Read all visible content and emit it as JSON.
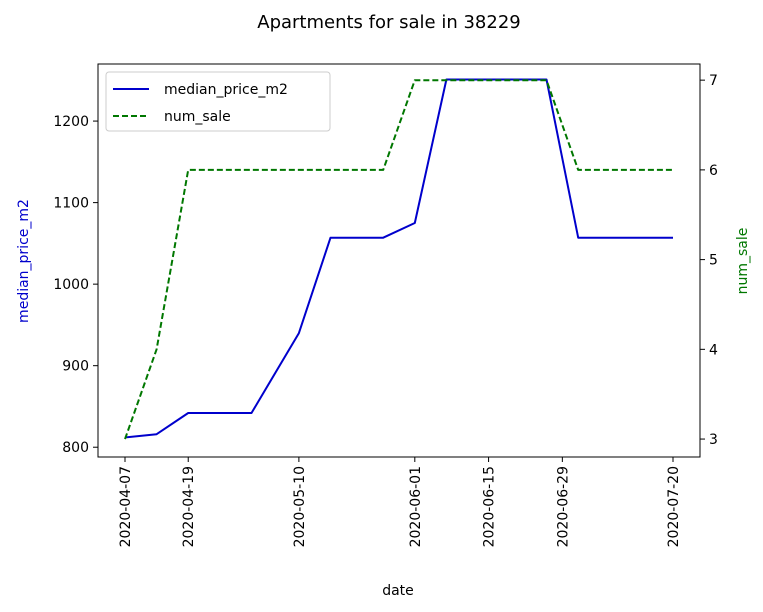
{
  "chart_data": {
    "type": "line",
    "title": "Apartments for sale in 38229",
    "xlabel": "date",
    "x": [
      "2020-04-07",
      "2020-04-13",
      "2020-04-19",
      "2020-05-01",
      "2020-05-10",
      "2020-05-16",
      "2020-05-26",
      "2020-06-01",
      "2020-06-07",
      "2020-06-26",
      "2020-07-02",
      "2020-07-20"
    ],
    "x_ticks": [
      "2020-04-07",
      "2020-04-19",
      "2020-05-10",
      "2020-06-01",
      "2020-06-15",
      "2020-06-29",
      "2020-07-20"
    ],
    "left_axis": {
      "label": "median_price_m2",
      "color": "#0000cc",
      "ylim": [
        788,
        1270
      ],
      "ticks": [
        800,
        900,
        1000,
        1100,
        1200
      ]
    },
    "right_axis": {
      "label": "num_sale",
      "color": "#007700",
      "ylim": [
        2.8,
        7.18
      ],
      "ticks": [
        3,
        4,
        5,
        6,
        7
      ]
    },
    "series": [
      {
        "name": "median_price_m2",
        "axis": "left",
        "style": "solid",
        "color": "#0000cc",
        "values": [
          812,
          816,
          842,
          842,
          940,
          1057,
          1057,
          1075,
          1251,
          1251,
          1057,
          1057
        ]
      },
      {
        "name": "num_sale",
        "axis": "right",
        "style": "dashed",
        "color": "#007700",
        "values": [
          3,
          4,
          6,
          6,
          6,
          6,
          6,
          7,
          7,
          7,
          6,
          6
        ]
      }
    ],
    "legend": {
      "position": "top-left",
      "entries": [
        "median_price_m2",
        "num_sale"
      ]
    },
    "grid": false
  }
}
